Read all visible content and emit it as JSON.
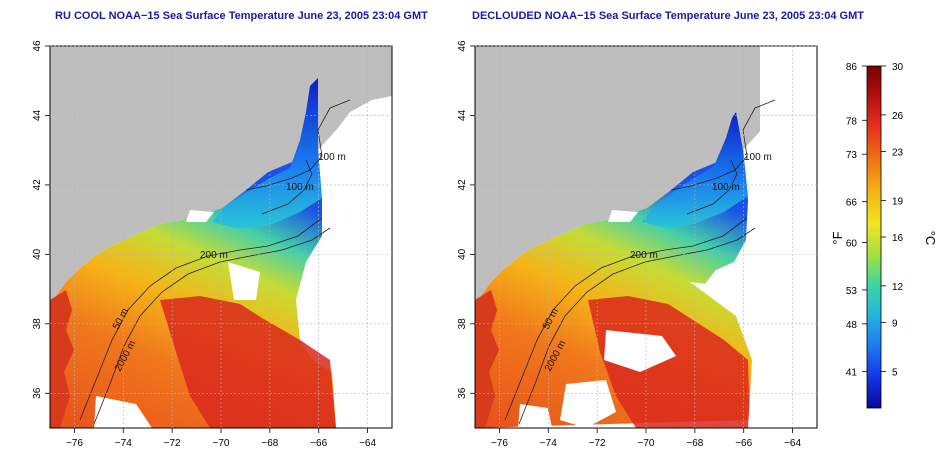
{
  "panels": [
    {
      "id": "left",
      "title": "RU COOL NOAA−15 Sea Surface Temperature June 23, 2005 23:04 GMT",
      "contour_labels": [
        "100 m",
        "100 m",
        "200 m",
        "50 m",
        "2000 m"
      ]
    },
    {
      "id": "right",
      "title": "DECLOUDED NOAA−15 Sea Surface Temperature June 23, 2005 23:04 GMT",
      "contour_labels": [
        "100 m",
        "100 m",
        "200 m",
        "50 m",
        "2000 m"
      ]
    }
  ],
  "axes": {
    "x_ticks": [
      "−76",
      "−74",
      "−72",
      "−70",
      "−68",
      "−66",
      "−64"
    ],
    "y_ticks": [
      "36",
      "38",
      "40",
      "42",
      "44",
      "46"
    ],
    "xlim": [
      -77,
      -63
    ],
    "ylim": [
      35,
      46
    ],
    "grid": true
  },
  "colorbar": {
    "fahrenheit_unit": "°F",
    "celsius_unit": "°C",
    "fahrenheit_ticks": [
      "86",
      "78",
      "73",
      "66",
      "60",
      "53",
      "48",
      "41"
    ],
    "celsius_ticks": [
      "30",
      "26",
      "23",
      "19",
      "16",
      "12",
      "9",
      "5"
    ],
    "range_c": [
      2,
      30
    ],
    "colors": [
      "#08089a",
      "#1236e6",
      "#1e78f0",
      "#22b4e0",
      "#3cd6a0",
      "#a6e040",
      "#f2e620",
      "#f5b414",
      "#f07814",
      "#e6321e",
      "#b40f0f",
      "#7a0000"
    ]
  },
  "colors": {
    "land": "#bebebe",
    "cloud": "#ffffff",
    "title": "#1a1aa6",
    "grid": "#b5b5b5"
  }
}
